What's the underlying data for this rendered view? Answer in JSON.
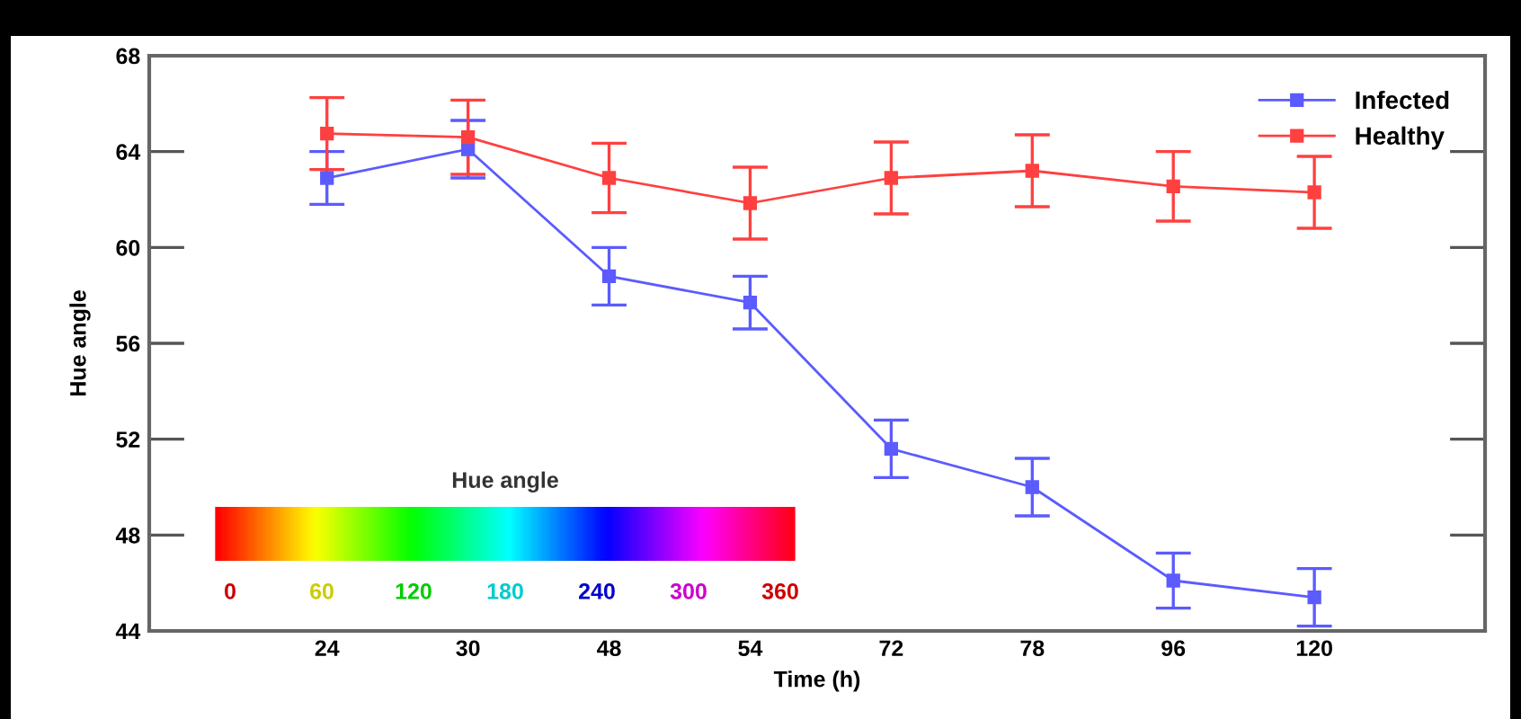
{
  "chart_data": {
    "type": "line",
    "xlabel": "Time (h)",
    "ylabel": "Hue angle",
    "categories": [
      "24",
      "30",
      "48",
      "54",
      "72",
      "78",
      "96",
      "120"
    ],
    "series": [
      {
        "name": "Infected",
        "color": "#5b5bff",
        "values": [
          62.9,
          64.1,
          58.8,
          57.7,
          51.6,
          50.0,
          46.1,
          45.4
        ],
        "errors": [
          1.1,
          1.2,
          1.2,
          1.1,
          1.2,
          1.2,
          1.15,
          1.2
        ]
      },
      {
        "name": "Healthy",
        "color": "#ff4040",
        "values": [
          64.75,
          64.6,
          62.9,
          61.85,
          62.9,
          63.2,
          62.55,
          62.3
        ],
        "errors": [
          1.5,
          1.55,
          1.45,
          1.5,
          1.5,
          1.5,
          1.45,
          1.5
        ]
      }
    ],
    "ylim": [
      44,
      68
    ],
    "yticks": [
      44,
      48,
      52,
      56,
      60,
      64,
      68
    ],
    "annotations": [
      "Hue angle",
      "0",
      "60",
      "120",
      "180",
      "240",
      "300",
      "360"
    ],
    "legend": "top right",
    "marker": "square",
    "line_style": "solid",
    "grid": false
  }
}
